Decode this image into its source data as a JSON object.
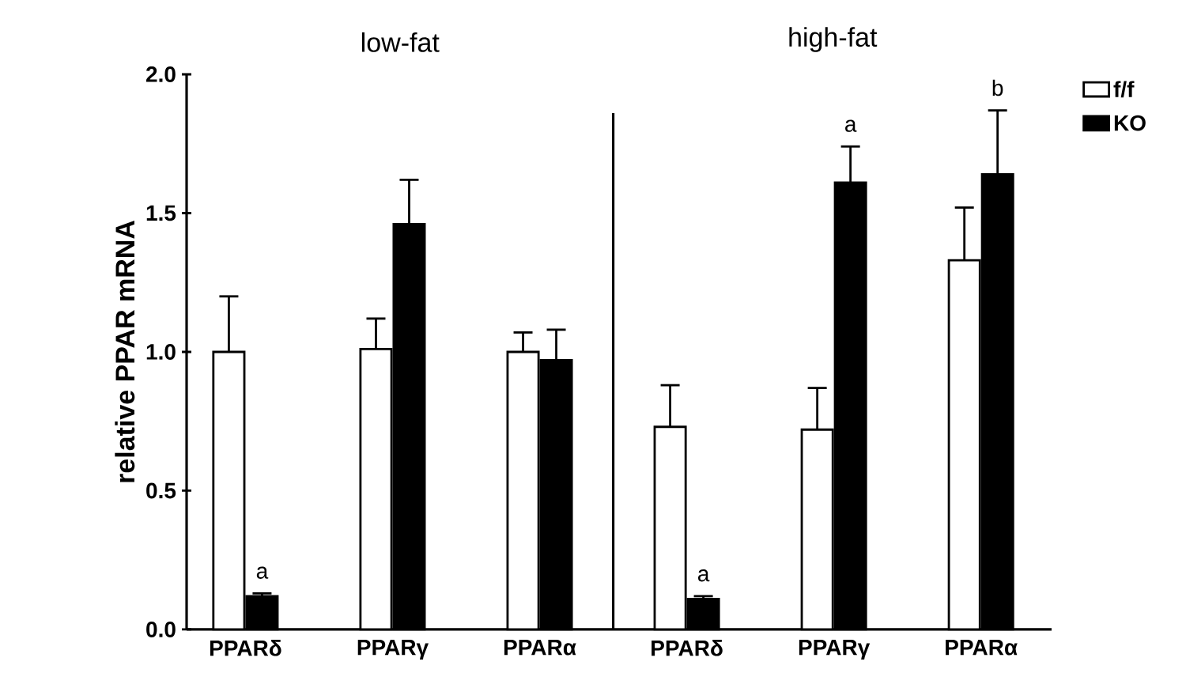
{
  "chart_data": {
    "type": "bar",
    "categories": [
      "PPARδ",
      "PPARγ",
      "PPARα",
      "PPARδ",
      "PPARγ",
      "PPARα"
    ],
    "ylabel": "relative PPAR mRNA",
    "series": [
      {
        "name": "f/f",
        "color": "#ffffff",
        "values": [
          1.0,
          1.01,
          1.0,
          0.73,
          0.72,
          1.33
        ],
        "errors": [
          [
            1.0,
            1.2
          ],
          [
            1.01,
            1.12
          ],
          [
            1.0,
            1.07
          ],
          [
            0.73,
            0.88
          ],
          [
            0.72,
            0.87
          ],
          [
            1.33,
            1.52
          ]
        ]
      },
      {
        "name": "KO",
        "color": "#000000",
        "values": [
          0.12,
          1.46,
          0.97,
          0.11,
          1.61,
          1.64
        ],
        "errors": [
          [
            0.12,
            0.13
          ],
          [
            1.46,
            1.62
          ],
          [
            0.97,
            1.08
          ],
          [
            0.11,
            0.12
          ],
          [
            1.61,
            1.74
          ],
          [
            1.64,
            1.87
          ]
        ]
      }
    ],
    "ylim": [
      0,
      2.0
    ],
    "yticks": [
      {
        "value": 0,
        "label": "0.0"
      },
      {
        "value": 0.5,
        "label": "0.5"
      },
      {
        "value": 1.0,
        "label": "1.0"
      },
      {
        "value": 1.5,
        "label": "1.5"
      },
      {
        "value": 2.0,
        "label": "2.0"
      }
    ],
    "annotations": [
      "low-fat",
      "high-fat",
      "a",
      "a",
      "a",
      "b"
    ],
    "legend": "top right",
    "grid": false
  }
}
